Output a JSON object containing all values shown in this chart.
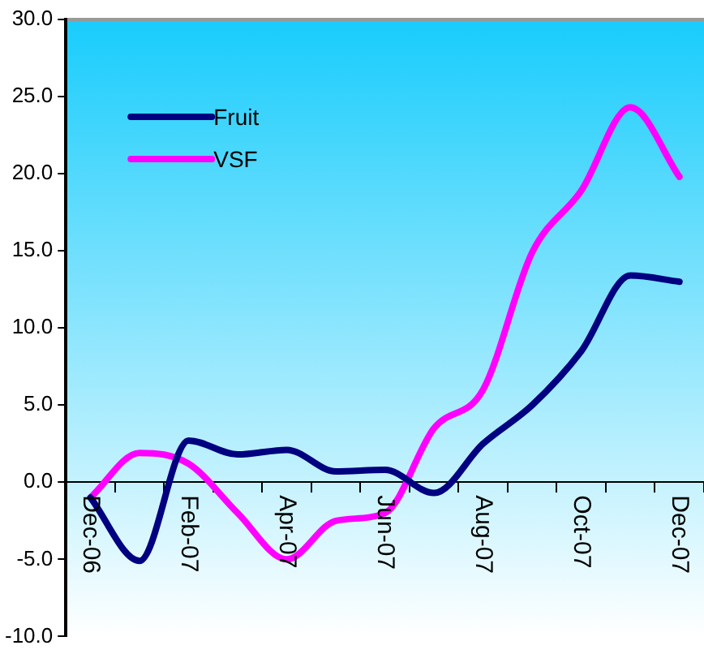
{
  "chart_data": {
    "type": "line",
    "categories": [
      "Dec-06",
      null,
      "Feb-07",
      null,
      "Apr-07",
      null,
      "Jun-07",
      null,
      "Aug-07",
      null,
      "Oct-07",
      null,
      "Dec-07"
    ],
    "series": [
      {
        "name": "Fruit",
        "color": "#000080",
        "values": [
          -1.0,
          -5.1,
          2.7,
          1.8,
          2.1,
          0.7,
          0.8,
          -0.7,
          2.5,
          5.0,
          8.5,
          13.4,
          13.0
        ]
      },
      {
        "name": "VSF",
        "color": "#ff00ff",
        "values": [
          -1.0,
          1.9,
          1.2,
          -2.0,
          -5.0,
          -2.5,
          -2.0,
          3.5,
          6.0,
          14.9,
          18.9,
          24.3,
          19.8
        ]
      }
    ],
    "ylim": [
      -10,
      30
    ],
    "yticks": [
      {
        "value": -10,
        "label": "-10.0"
      },
      {
        "value": -5,
        "label": "-5.0"
      },
      {
        "value": 0,
        "label": "0.0"
      },
      {
        "value": 5,
        "label": "5.0"
      },
      {
        "value": 10,
        "label": "10.0"
      },
      {
        "value": 15,
        "label": "15.0"
      },
      {
        "value": 20,
        "label": "20.0"
      },
      {
        "value": 25,
        "label": "25.0"
      },
      {
        "value": 30,
        "label": "30.0"
      }
    ],
    "grid": false,
    "legend": "top left",
    "marker": "none",
    "line_style": "solid"
  }
}
